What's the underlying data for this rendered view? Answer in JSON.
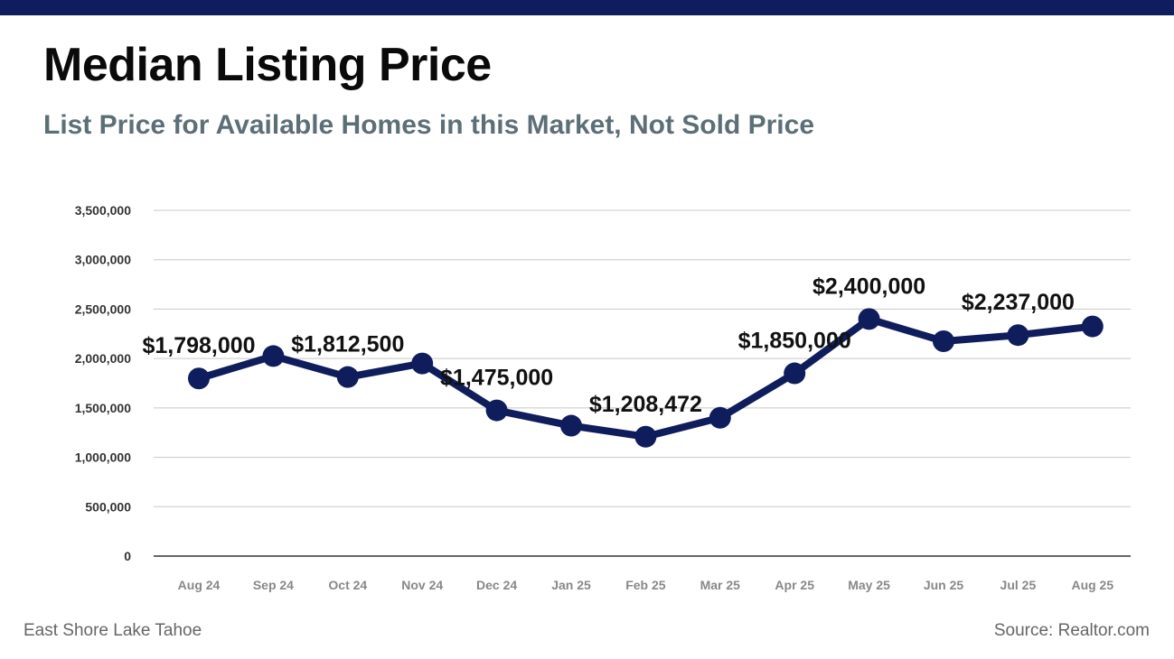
{
  "header": {
    "title": "Median Listing Price",
    "subtitle": "List Price for Available Homes in this Market, Not Sold Price"
  },
  "footer": {
    "left": "East Shore Lake Tahoe",
    "right": "Source: Realtor.com"
  },
  "colors": {
    "top_bar": "#0f1d5c",
    "line": "#0f1d5c",
    "subtitle": "#5c6f77",
    "grid": "#c8c8c8"
  },
  "chart_data": {
    "type": "line",
    "title": "",
    "xlabel": "",
    "ylabel": "",
    "ylim": [
      0,
      3500000
    ],
    "grid": true,
    "yticks": [
      "0",
      "500,000",
      "1,000,000",
      "1,500,000",
      "2,000,000",
      "2,500,000",
      "3,000,000",
      "3,500,000"
    ],
    "categories": [
      "Aug 24",
      "Sep 24",
      "Oct 24",
      "Nov 24",
      "Dec 24",
      "Jan 25",
      "Feb 25",
      "Mar 25",
      "Apr 25",
      "May 25",
      "Jun 25",
      "Jul 25",
      "Aug 25"
    ],
    "series": [
      {
        "values": [
          1798000,
          2025000,
          1812500,
          1950000,
          1475000,
          1320000,
          1208472,
          1400000,
          1850000,
          2400000,
          2175000,
          2237000,
          2325000
        ]
      }
    ],
    "data_labels": [
      {
        "index": 0,
        "text": "$1,798,000"
      },
      {
        "index": 2,
        "text": "$1,812,500"
      },
      {
        "index": 4,
        "text": "$1,475,000"
      },
      {
        "index": 6,
        "text": "$1,208,472"
      },
      {
        "index": 8,
        "text": "$1,850,000"
      },
      {
        "index": 9,
        "text": "$2,400,000"
      },
      {
        "index": 11,
        "text": "$2,237,000"
      }
    ]
  }
}
